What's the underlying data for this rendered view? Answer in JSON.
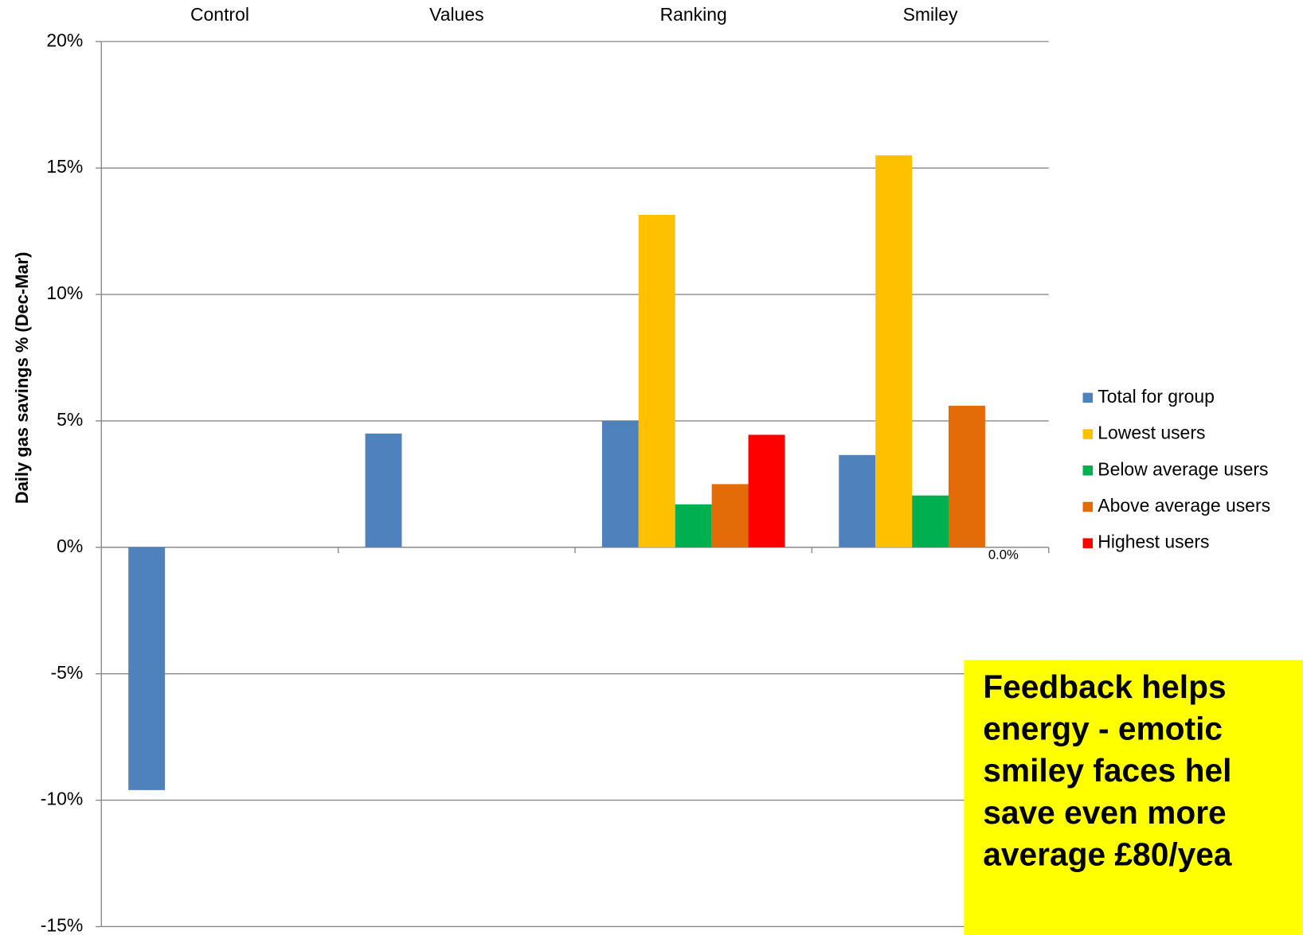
{
  "chart_data": {
    "type": "bar",
    "categories": [
      "Control",
      "Values",
      "Ranking",
      "Smiley"
    ],
    "y_label": "Daily gas savings % (Dec-Mar)",
    "series": [
      {
        "name": "Total for group",
        "color": "#4f81bd",
        "values": [
          -9.6,
          4.5,
          5.0,
          3.65
        ]
      },
      {
        "name": "Lowest users",
        "color": "#ffc000",
        "values": [
          null,
          null,
          13.15,
          15.5
        ]
      },
      {
        "name": "Below average users",
        "color": "#00b050",
        "values": [
          null,
          null,
          1.7,
          2.05
        ]
      },
      {
        "name": "Above average users",
        "color": "#e36c09",
        "values": [
          null,
          null,
          2.5,
          5.6
        ]
      },
      {
        "name": "Highest users",
        "color": "#ff0000",
        "values": [
          null,
          null,
          4.45,
          0.0
        ],
        "value_labels": [
          null,
          null,
          null,
          "0.0%"
        ]
      }
    ],
    "ylim": [
      -15,
      20
    ],
    "yticks": [
      {
        "value": -15,
        "label": "-15%"
      },
      {
        "value": -10,
        "label": "-10%"
      },
      {
        "value": -5,
        "label": "-5%"
      },
      {
        "value": 0,
        "label": "0%"
      },
      {
        "value": 5,
        "label": "5%"
      },
      {
        "value": 10,
        "label": "10%"
      },
      {
        "value": 15,
        "label": "15%"
      },
      {
        "value": 20,
        "label": "20%"
      }
    ],
    "grid": true,
    "legend_position": "right",
    "annotation": [
      "Feedback helps",
      "energy -  emotic",
      "smiley faces hel",
      "save even more",
      "average £80/yea"
    ]
  }
}
